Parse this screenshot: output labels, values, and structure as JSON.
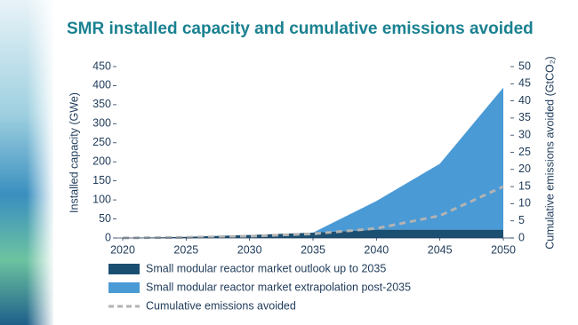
{
  "chart_data": {
    "type": "area",
    "title": "SMR installed capacity and cumulative emissions avoided",
    "y_label": "Installed capacity (GWe)",
    "y2_label": "Cumulative emissions avoided (GtCO₂)",
    "x": [
      2020,
      2025,
      2030,
      2035,
      2040,
      2045,
      2050
    ],
    "xlim": [
      2020,
      2050
    ],
    "xticks": [
      2020,
      2025,
      2030,
      2035,
      2040,
      2045,
      2050
    ],
    "ylim": [
      0,
      450
    ],
    "yticks": [
      0,
      50,
      100,
      150,
      200,
      250,
      300,
      350,
      400,
      450
    ],
    "y2lim": [
      0,
      50
    ],
    "y2ticks": [
      0,
      5,
      10,
      15,
      20,
      25,
      30,
      35,
      40,
      45,
      50
    ],
    "series": [
      {
        "name": "Small modular reactor market outlook up to 2035",
        "color": "#1b4f72",
        "values": [
          0,
          3,
          8,
          14,
          22,
          22,
          22
        ]
      },
      {
        "name": "Small modular reactor market extrapolation post-2035",
        "color": "#4a9ad6",
        "values": [
          null,
          null,
          null,
          0,
          75,
          173,
          373
        ]
      },
      {
        "name": "Cumulative emissions avoided",
        "color": "#b3b3b3",
        "axis": "y2",
        "style": "dashed",
        "values": [
          0,
          0.2,
          0.5,
          1.2,
          2.8,
          6.5,
          15
        ]
      }
    ]
  }
}
